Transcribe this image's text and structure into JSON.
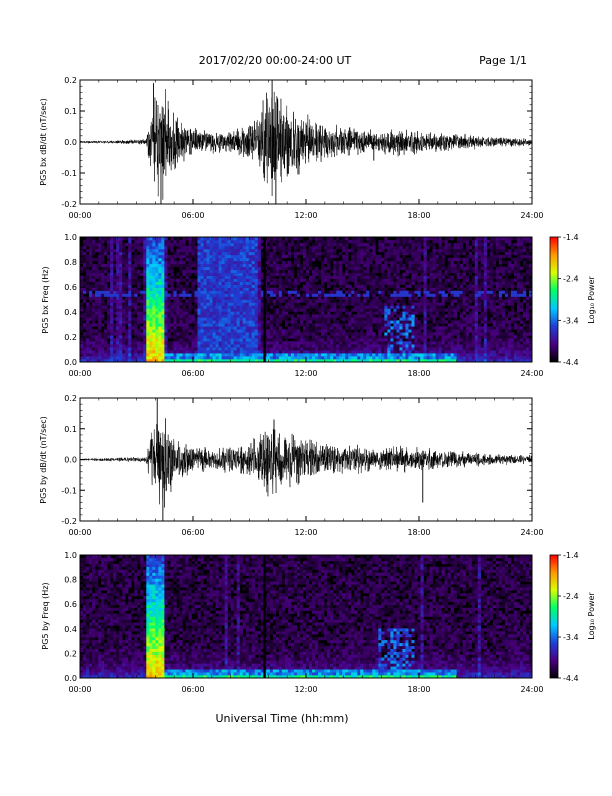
{
  "header": {
    "title": "2017/02/20  00:00-24:00 UT",
    "page": "Page 1/1"
  },
  "footer": {
    "xlabel": "Universal Time (hh:mm)"
  },
  "colors": {
    "background": "#ffffff",
    "trace": "#000000",
    "spectrogram_low": "#000000",
    "colorbar_stops": [
      "#000000",
      "#4b0082",
      "#1f3fd6",
      "#00c8ff",
      "#00ff66",
      "#d8ff00",
      "#ff9900",
      "#ff0000"
    ]
  },
  "chart_data": [
    {
      "type": "line",
      "ylabel": "PG5 bx dB/dt (nT/sec)",
      "xlim": [
        0,
        24
      ],
      "ylim": [
        -0.2,
        0.2
      ],
      "xticks": [
        "00:00",
        "06:00",
        "12:00",
        "18:00",
        "24:00"
      ],
      "yticks": [
        "-0.2",
        "-0.1",
        "0.0",
        "0.1",
        "0.2"
      ],
      "yticks_values": [
        -0.2,
        -0.1,
        0.0,
        0.1,
        0.2
      ],
      "envelope": {
        "hours": [
          0,
          2.0,
          3.5,
          3.8,
          4.2,
          4.5,
          5.0,
          6.0,
          7.0,
          8.5,
          9.5,
          9.9,
          10.1,
          10.5,
          11.0,
          12.0,
          13.0,
          14.5,
          16.0,
          17.0,
          18.0,
          20.0,
          22.0,
          24.0
        ],
        "amplitude": [
          0.004,
          0.007,
          0.01,
          0.12,
          0.21,
          0.2,
          0.1,
          0.05,
          0.04,
          0.05,
          0.1,
          0.2,
          0.22,
          0.2,
          0.14,
          0.1,
          0.07,
          0.05,
          0.04,
          0.05,
          0.04,
          0.03,
          0.02,
          0.015
        ]
      },
      "events": [
        {
          "hour": 3.9,
          "value": 0.19
        },
        {
          "hour": 4.3,
          "value": -0.21
        },
        {
          "hour": 10.2,
          "value": 0.21
        },
        {
          "hour": 10.4,
          "value": -0.2
        },
        {
          "hour": 15.6,
          "value": -0.06
        }
      ]
    },
    {
      "type": "heatmap",
      "ylabel": "PG5 bx Freq (Hz)",
      "xlim": [
        0,
        24
      ],
      "ylim": [
        0.0,
        1.0
      ],
      "xticks": [
        "00:00",
        "06:00",
        "12:00",
        "18:00",
        "24:00"
      ],
      "yticks": [
        "0.0",
        "0.2",
        "0.4",
        "0.6",
        "0.8",
        "1.0"
      ],
      "yticks_values": [
        0.0,
        0.2,
        0.4,
        0.6,
        0.8,
        1.0
      ],
      "colorbar": {
        "label": "Log₁₀ Power",
        "range": [
          -4.4,
          -1.4
        ],
        "ticks": [
          "-1.4",
          "-2.4",
          "-3.4",
          "-4.4"
        ]
      },
      "features": [
        {
          "kind": "burst",
          "hour_start": 3.6,
          "hour_end": 4.4,
          "power": -2.0
        },
        {
          "kind": "wideband",
          "hour_start": 6.3,
          "hour_end": 9.5,
          "power": -3.4
        },
        {
          "kind": "data_gap",
          "hour": 9.8
        },
        {
          "kind": "patch",
          "hour_start": 16.2,
          "hour_end": 17.8,
          "freq_min": 0.0,
          "freq_max": 0.45,
          "power": -3.2
        },
        {
          "kind": "line",
          "freq": 0.55,
          "power": -3.6
        }
      ]
    },
    {
      "type": "line",
      "ylabel": "PG5 by dB/dt (nT/sec)",
      "xlim": [
        0,
        24
      ],
      "ylim": [
        -0.2,
        0.2
      ],
      "xticks": [
        "00:00",
        "06:00",
        "12:00",
        "18:00",
        "24:00"
      ],
      "yticks": [
        "-0.2",
        "-0.1",
        "0.0",
        "0.1",
        "0.2"
      ],
      "yticks_values": [
        -0.2,
        -0.1,
        0.0,
        0.1,
        0.2
      ],
      "envelope": {
        "hours": [
          0,
          2.0,
          3.5,
          3.8,
          4.2,
          4.5,
          5.0,
          6.0,
          7.0,
          8.5,
          9.5,
          9.9,
          10.1,
          10.5,
          11.0,
          12.0,
          13.0,
          14.5,
          16.0,
          17.0,
          18.0,
          20.0,
          22.0,
          24.0
        ],
        "amplitude": [
          0.004,
          0.007,
          0.01,
          0.11,
          0.19,
          0.18,
          0.09,
          0.05,
          0.04,
          0.05,
          0.09,
          0.12,
          0.14,
          0.12,
          0.1,
          0.08,
          0.06,
          0.05,
          0.04,
          0.05,
          0.04,
          0.03,
          0.02,
          0.015
        ]
      },
      "events": [
        {
          "hour": 4.1,
          "value": 0.2
        },
        {
          "hour": 4.4,
          "value": -0.21
        },
        {
          "hour": 10.3,
          "value": 0.13
        },
        {
          "hour": 18.2,
          "value": -0.14
        }
      ]
    },
    {
      "type": "heatmap",
      "ylabel": "PG5 by Freq (Hz)",
      "xlim": [
        0,
        24
      ],
      "ylim": [
        0.0,
        1.0
      ],
      "xticks": [
        "00:00",
        "06:00",
        "12:00",
        "18:00",
        "24:00"
      ],
      "yticks": [
        "0.0",
        "0.2",
        "0.4",
        "0.6",
        "0.8",
        "1.0"
      ],
      "yticks_values": [
        0.0,
        0.2,
        0.4,
        0.6,
        0.8,
        1.0
      ],
      "colorbar": {
        "label": "Log₁₀ Power",
        "range": [
          -4.4,
          -1.4
        ],
        "ticks": [
          "-1.4",
          "-2.4",
          "-3.4",
          "-4.4"
        ]
      },
      "features": [
        {
          "kind": "burst",
          "hour_start": 3.6,
          "hour_end": 4.4,
          "power": -2.0
        },
        {
          "kind": "data_gap",
          "hour": 9.8
        },
        {
          "kind": "patch",
          "hour_start": 15.8,
          "hour_end": 17.8,
          "freq_min": 0.0,
          "freq_max": 0.4,
          "power": -3.2
        }
      ]
    }
  ]
}
